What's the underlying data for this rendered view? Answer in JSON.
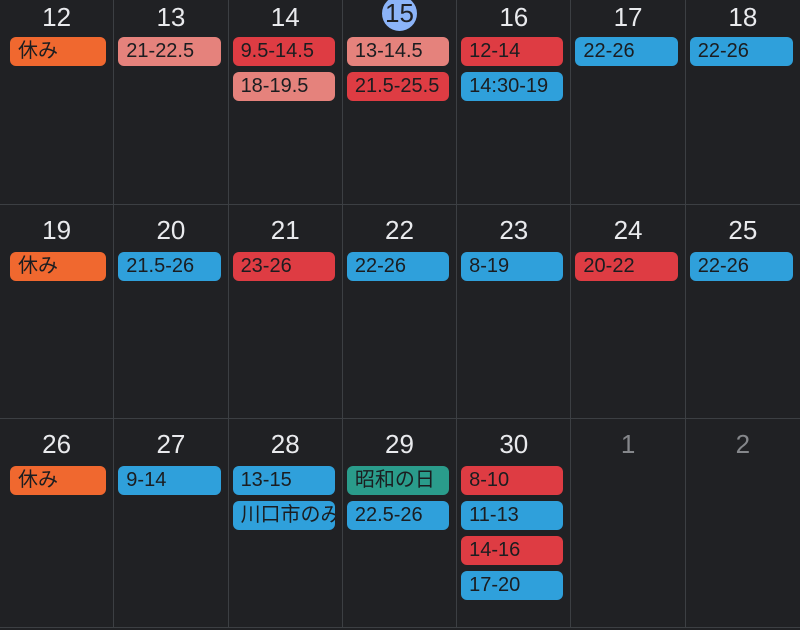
{
  "calendar": {
    "weeks": [
      {
        "days": [
          {
            "date": "12",
            "state": "current",
            "events": [
              {
                "label": "休み",
                "color": "orange"
              }
            ]
          },
          {
            "date": "13",
            "state": "current",
            "events": [
              {
                "label": "21-22.5",
                "color": "salmon"
              }
            ]
          },
          {
            "date": "14",
            "state": "current",
            "events": [
              {
                "label": "9.5-14.5",
                "color": "red"
              },
              {
                "label": "18-19.5",
                "color": "salmon"
              }
            ]
          },
          {
            "date": "15",
            "state": "selected",
            "events": [
              {
                "label": "13-14.5",
                "color": "salmon"
              },
              {
                "label": "21.5-25.5",
                "color": "red"
              }
            ]
          },
          {
            "date": "16",
            "state": "current",
            "events": [
              {
                "label": "12-14",
                "color": "red"
              },
              {
                "label": "14:30-19",
                "color": "blue"
              }
            ]
          },
          {
            "date": "17",
            "state": "current",
            "events": [
              {
                "label": "22-26",
                "color": "blue"
              }
            ]
          },
          {
            "date": "18",
            "state": "current",
            "events": [
              {
                "label": "22-26",
                "color": "blue"
              }
            ]
          }
        ]
      },
      {
        "days": [
          {
            "date": "19",
            "state": "current",
            "events": [
              {
                "label": "休み",
                "color": "orange"
              }
            ]
          },
          {
            "date": "20",
            "state": "current",
            "events": [
              {
                "label": "21.5-26",
                "color": "blue"
              }
            ]
          },
          {
            "date": "21",
            "state": "current",
            "events": [
              {
                "label": "23-26",
                "color": "red"
              }
            ]
          },
          {
            "date": "22",
            "state": "current",
            "events": [
              {
                "label": "22-26",
                "color": "blue"
              }
            ]
          },
          {
            "date": "23",
            "state": "current",
            "events": [
              {
                "label": "8-19",
                "color": "blue"
              }
            ]
          },
          {
            "date": "24",
            "state": "current",
            "events": [
              {
                "label": "20-22",
                "color": "red"
              }
            ]
          },
          {
            "date": "25",
            "state": "current",
            "events": [
              {
                "label": "22-26",
                "color": "blue"
              }
            ]
          }
        ]
      },
      {
        "days": [
          {
            "date": "26",
            "state": "current",
            "events": [
              {
                "label": "休み",
                "color": "orange"
              }
            ]
          },
          {
            "date": "27",
            "state": "current",
            "events": [
              {
                "label": "9-14",
                "color": "blue"
              }
            ]
          },
          {
            "date": "28",
            "state": "current",
            "events": [
              {
                "label": "13-15",
                "color": "blue"
              },
              {
                "label": "川口市のみ",
                "color": "blue"
              }
            ]
          },
          {
            "date": "29",
            "state": "current",
            "events": [
              {
                "label": "昭和の日",
                "color": "green"
              },
              {
                "label": "22.5-26",
                "color": "blue"
              }
            ]
          },
          {
            "date": "30",
            "state": "current",
            "events": [
              {
                "label": "8-10",
                "color": "red"
              },
              {
                "label": "11-13",
                "color": "blue"
              },
              {
                "label": "14-16",
                "color": "red"
              },
              {
                "label": "17-20",
                "color": "blue"
              }
            ]
          },
          {
            "date": "1",
            "state": "muted",
            "events": []
          },
          {
            "date": "2",
            "state": "muted",
            "events": []
          }
        ]
      }
    ],
    "colors": {
      "background": "#202124",
      "gridline": "#3c3f43",
      "date_text": "#e9eaed",
      "muted_date_text": "#85878b",
      "selected_circle": "#8cb4f8",
      "selected_date_text": "#1f2023",
      "event_text": "#1b1d20",
      "orange": "#f0682f",
      "salmon": "#e5827c",
      "red": "#de3c43",
      "blue": "#2fa0db",
      "green": "#2a9c8b"
    }
  }
}
